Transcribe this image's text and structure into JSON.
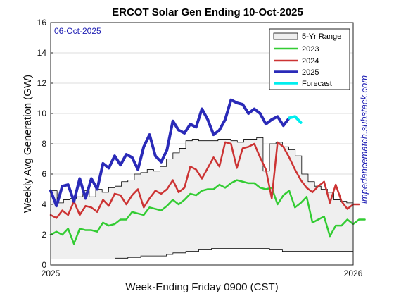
{
  "chart_data": {
    "type": "line",
    "title": "ERCOT Solar Gen Ending 10-Oct-2025",
    "date_label": "06-Oct-2025",
    "xlabel": "Week-Ending Friday 0900 (CST)",
    "ylabel": "Weekly Avg Generation (GW)",
    "credit": "impedancematch.substack.com",
    "x_ticks": [
      "2025",
      "2026"
    ],
    "ylim": [
      0,
      16
    ],
    "y_ticks": [
      0,
      2,
      4,
      6,
      8,
      10,
      12,
      14,
      16
    ],
    "grid": true,
    "legend_position": "top-right",
    "colors": {
      "range_fill": "#efefef",
      "range_edge": "#000000",
      "2023": "#33cc33",
      "2024": "#cc3333",
      "2025": "#2a2ab8",
      "forecast": "#00eeee",
      "grid": "#dcdcdc"
    },
    "series": [
      {
        "name": "5-Yr Range",
        "kind": "range",
        "upper": [
          4.9,
          4.1,
          4.3,
          4.4,
          4.5,
          4.9,
          4.5,
          5.0,
          4.8,
          5.1,
          5.2,
          5.5,
          5.6,
          6.0,
          6.1,
          6.3,
          6.2,
          6.5,
          7.0,
          7.4,
          7.7,
          8.2,
          8.3,
          8.2,
          8.2,
          8.2,
          8.3,
          8.3,
          8.2,
          8.1,
          8.3,
          8.3,
          8.4,
          6.2,
          8.0,
          8.1,
          7.8,
          7.6,
          7.2,
          6.0,
          5.5,
          5.2,
          5.0,
          4.8,
          4.3,
          4.2,
          4.1
        ],
        "lower": [
          0.4,
          0.4,
          0.4,
          0.4,
          0.4,
          0.4,
          0.4,
          0.4,
          0.4,
          0.4,
          0.45,
          0.45,
          0.5,
          0.5,
          0.6,
          0.6,
          0.6,
          0.6,
          0.7,
          0.8,
          0.8,
          0.9,
          0.9,
          1.0,
          1.0,
          1.1,
          1.1,
          1.1,
          1.1,
          1.1,
          1.1,
          1.1,
          1.1,
          1.1,
          1.0,
          1.0,
          0.9,
          0.9,
          0.9,
          0.9,
          0.9,
          0.9,
          0.9,
          0.9,
          0.9,
          0.9,
          0.9
        ]
      },
      {
        "name": "2023",
        "values": [
          2.0,
          2.2,
          2.0,
          2.4,
          1.4,
          2.4,
          2.3,
          2.3,
          2.2,
          2.8,
          2.6,
          2.7,
          3.0,
          3.0,
          3.5,
          3.4,
          3.3,
          3.8,
          3.7,
          3.6,
          3.9,
          4.3,
          4.0,
          4.3,
          4.7,
          4.6,
          4.9,
          5.0,
          5.0,
          5.3,
          5.1,
          5.4,
          5.6,
          5.5,
          5.4,
          5.4,
          5.1,
          5.0,
          5.1,
          4.0,
          4.6,
          4.9,
          3.8,
          4.1,
          4.5,
          2.8,
          3.0,
          3.2,
          1.9,
          2.6,
          2.6,
          3.0,
          2.7,
          3.0,
          3.0
        ]
      },
      {
        "name": "2024",
        "values": [
          3.3,
          3.1,
          3.6,
          3.3,
          4.2,
          3.3,
          3.9,
          3.8,
          3.5,
          4.3,
          3.9,
          4.7,
          4.6,
          4.0,
          4.6,
          5.0,
          3.8,
          4.4,
          4.9,
          4.7,
          5.0,
          5.6,
          4.8,
          5.1,
          6.5,
          6.3,
          5.7,
          6.4,
          7.1,
          6.5,
          8.1,
          8.0,
          6.4,
          7.7,
          7.8,
          8.0,
          7.1,
          6.3,
          4.4,
          8.1,
          7.8,
          7.1,
          6.3,
          5.6,
          5.1,
          4.8,
          5.2,
          5.5,
          4.1,
          5.3,
          4.2,
          3.7,
          4.0,
          4.0
        ]
      },
      {
        "name": "2025",
        "values": [
          4.9,
          3.9,
          5.2,
          5.3,
          4.2,
          5.7,
          4.4,
          5.7,
          5.0,
          6.7,
          6.4,
          7.2,
          6.6,
          7.3,
          7.1,
          6.3,
          7.8,
          8.6,
          7.2,
          6.8,
          7.6,
          9.5,
          8.9,
          8.7,
          9.3,
          9.1,
          10.3,
          9.6,
          8.6,
          8.9,
          9.6,
          10.9,
          10.7,
          10.6,
          10.0,
          10.3,
          10.0,
          9.3,
          9.6,
          9.8,
          9.2,
          9.7
        ]
      },
      {
        "name": "Forecast",
        "values": [
          9.7,
          9.8,
          9.4
        ]
      }
    ]
  }
}
